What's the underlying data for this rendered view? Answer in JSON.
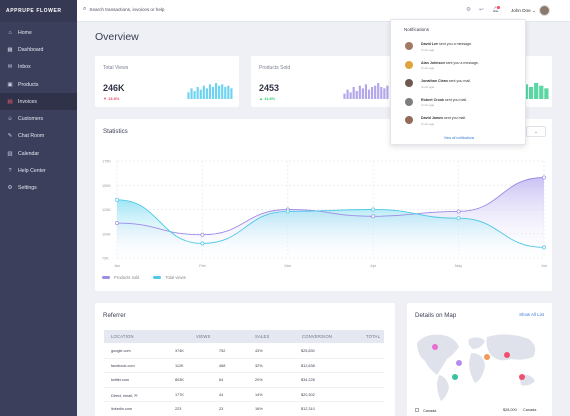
{
  "brand": "APPRUPE FLOWER",
  "sidebar": {
    "items": [
      {
        "label": "Home",
        "icon": "home-icon",
        "glyph": "⌂"
      },
      {
        "label": "Dashboard",
        "icon": "dashboard-icon",
        "glyph": "▦"
      },
      {
        "label": "Inbox",
        "icon": "inbox-icon",
        "glyph": "✉"
      },
      {
        "label": "Products",
        "icon": "products-icon",
        "glyph": "▣"
      },
      {
        "label": "Invoices",
        "icon": "invoices-icon",
        "glyph": "▤"
      },
      {
        "label": "Customers",
        "icon": "customers-icon",
        "glyph": "☺"
      },
      {
        "label": "Chat Room",
        "icon": "chat-icon",
        "glyph": "✎"
      },
      {
        "label": "Calendar",
        "icon": "calendar-icon",
        "glyph": "▥"
      },
      {
        "label": "Help Center",
        "icon": "help-icon",
        "glyph": "?"
      },
      {
        "label": "Settings",
        "icon": "settings-icon",
        "glyph": "⚙"
      }
    ],
    "active_index": 4
  },
  "topbar": {
    "search_placeholder": "Search transactions, invoices or help",
    "user_name": "John Doe ⌄"
  },
  "page_title": "Overview",
  "stats": [
    {
      "title": "Total Views",
      "value": "246K",
      "change": "▼ 13.8%",
      "direction": "down",
      "bars": [
        5,
        8,
        6,
        9,
        7,
        10,
        8,
        11,
        9,
        12,
        10,
        11,
        9,
        10,
        8
      ],
      "color": "#6ed3f0"
    },
    {
      "title": "Products Sold",
      "value": "2453",
      "change": "▲ 11.8%",
      "direction": "up",
      "bars": [
        4,
        7,
        5,
        9,
        6,
        10,
        8,
        11,
        7,
        9,
        10,
        12,
        9,
        8,
        10
      ],
      "color": "#b3a6ea"
    },
    {
      "title": "",
      "value": "",
      "change": "",
      "direction": "up",
      "bars": [
        6,
        8,
        10,
        7,
        11,
        9,
        12,
        10,
        8
      ],
      "color": "#5bd7a4"
    }
  ],
  "statistics": {
    "title": "Statistics"
  },
  "chart_data": {
    "type": "area",
    "x": [
      "Jan",
      "Feb",
      "Mar",
      "Apr",
      "May",
      "Jun"
    ],
    "series": [
      {
        "name": "Products sold",
        "values": [
          111,
          99,
          125,
          118,
          123,
          158
        ],
        "color": "#9b8de6"
      },
      {
        "name": "Total views",
        "values": [
          135,
          90,
          123,
          125,
          116,
          86
        ],
        "color": "#4fc8e6"
      }
    ],
    "y_ticks": [
      "75K",
      "100K",
      "125K",
      "150K",
      "175K"
    ],
    "ylim": [
      75,
      175
    ],
    "grid": true,
    "legend_position": "bottom-left"
  },
  "referrer": {
    "title": "Referrer",
    "columns": [
      "LOCATION",
      "VIEWS",
      "SALES",
      "CONVERSION",
      "TOTAL"
    ],
    "rows": [
      {
        "location": "google.com",
        "views": "374K",
        "sales": "752",
        "conversion": "43%",
        "total": "$25,830"
      },
      {
        "location": "facebook.com",
        "views": "112K",
        "sales": "468",
        "conversion": "32%",
        "total": "$12,638"
      },
      {
        "location": "twitter.com",
        "views": "803K",
        "sales": "64",
        "conversion": "20%",
        "total": "$34,228"
      },
      {
        "location": "Direct, email, ✉",
        "views": "177K",
        "sales": "44",
        "conversion": "14%",
        "total": "$20,302"
      },
      {
        "location": "linkedin.com",
        "views": "223",
        "sales": "23",
        "conversion": "16%",
        "total": "$12,310"
      }
    ]
  },
  "map": {
    "title": "Details on Map",
    "link": "Show All List",
    "row": {
      "country": "Canada",
      "value": "$28,000",
      "region": "Canada"
    }
  },
  "notifications": {
    "title": "Notifications",
    "items": [
      {
        "name": "David Lee",
        "text": "sent you a message.",
        "time": "4 min ago",
        "color": "#a07a62"
      },
      {
        "name": "Alan Johnson",
        "text": "sent you a message.",
        "time": "4 min ago",
        "color": "#e0a43c"
      },
      {
        "name": "Jonathan Clean",
        "text": "sent you mail.",
        "time": "4 min ago",
        "color": "#6e5850"
      },
      {
        "name": "Robert Crook",
        "text": "sent you mail.",
        "time": "4 min ago",
        "color": "#7d7d7d"
      },
      {
        "name": "David James",
        "text": "sent you mail.",
        "time": "4 min ago",
        "color": "#936a5a"
      }
    ],
    "view_all": "View all notifications"
  }
}
